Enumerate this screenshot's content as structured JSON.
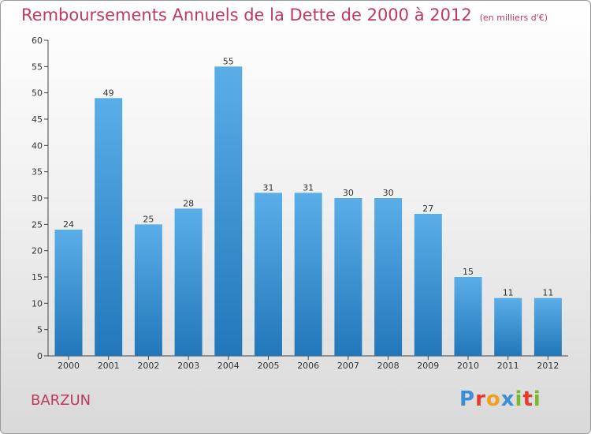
{
  "title": "Remboursements Annuels de la Dette de 2000 à 2012",
  "subtitle": "(en milliers d'€)",
  "commune": "BARZUN",
  "logo": {
    "text": "Proxiti",
    "letters": [
      {
        "char": "P",
        "color": "#3a8fd6"
      },
      {
        "char": "r",
        "color": "#e8392f"
      },
      {
        "char": "o",
        "color": "#f0a020"
      },
      {
        "char": "x",
        "color": "#3a8fd6"
      },
      {
        "char": "i",
        "color": "#7cb82f"
      },
      {
        "char": "t",
        "color": "#e8392f"
      },
      {
        "char": "i",
        "color": "#7cb82f"
      }
    ]
  },
  "colors": {
    "title": "#c0395e",
    "bar_top": "#5aaee8",
    "bar_bottom": "#2277bb",
    "axis": "#444444",
    "grid": "#cccccc"
  },
  "chart_data": {
    "type": "bar",
    "categories": [
      "2000",
      "2001",
      "2002",
      "2003",
      "2004",
      "2005",
      "2006",
      "2007",
      "2008",
      "2009",
      "2010",
      "2011",
      "2012"
    ],
    "values": [
      24,
      49,
      25,
      28,
      55,
      31,
      31,
      30,
      30,
      27,
      15,
      11,
      11
    ],
    "ylim": [
      0,
      60
    ],
    "yticks": [
      0,
      5,
      10,
      15,
      20,
      25,
      30,
      35,
      40,
      45,
      50,
      55,
      60
    ],
    "xlabel": "",
    "ylabel": "",
    "grid": false,
    "data_labels": true
  }
}
